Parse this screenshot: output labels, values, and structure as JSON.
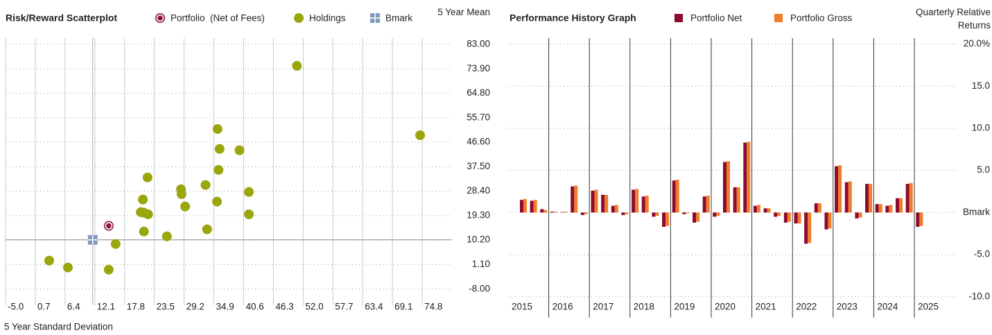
{
  "chart_data": [
    {
      "type": "scatter",
      "title": "Risk/Reward Scatterplot",
      "x_label": "5 Year Standard Deviation",
      "y_label": "5 Year Mean",
      "xlim": [
        -5.0,
        80.5
      ],
      "ylim": [
        -14.0,
        85.3
      ],
      "xticks": [
        {
          "value": -5.0,
          "label": "-5.0"
        },
        0.7,
        6.4,
        12.1,
        17.8,
        23.5,
        29.2,
        34.9,
        40.6,
        46.3,
        {
          "value": 52.0,
          "label": "52.0"
        },
        57.7,
        63.4,
        69.1,
        74.8
      ],
      "yticks": [
        {
          "value": 83,
          "label": "83.00"
        },
        {
          "value": 73.9,
          "label": "73.90"
        },
        {
          "value": 64.8,
          "label": "64.80"
        },
        {
          "value": 55.7,
          "label": "55.70"
        },
        {
          "value": 46.6,
          "label": "46.60"
        },
        {
          "value": 37.5,
          "label": "37.50"
        },
        {
          "value": 28.4,
          "label": "28.40"
        },
        {
          "value": 19.3,
          "label": "19.30"
        },
        {
          "value": 10.2,
          "label": "10.20"
        },
        {
          "value": 1.1,
          "label": "1.10"
        },
        {
          "value": -8,
          "label": "-8.00"
        }
      ],
      "grid": true,
      "series": [
        {
          "name": "Portfolio  (Net of Fees)",
          "color": "#8b1538",
          "marker": "ring",
          "x": [
            14.76
          ],
          "y": [
            15.5
          ]
        },
        {
          "name": "Holdings",
          "color": "#9aa60c",
          "marker": "circle",
          "x": [
            3.36,
            6.94,
            14.76,
            16.09,
            21.5,
            25.9,
            20.9,
            21.5,
            22.3,
            21.3,
            22.2,
            28.6,
            28.7,
            29.4,
            33.3,
            33.6,
            35.5,
            35.6,
            36.0,
            35.8,
            39.8,
            41.6,
            41.6,
            50.8,
            74.4
          ],
          "y": [
            2.57,
            0.0,
            -0.8,
            8.75,
            13.4,
            11.6,
            20.6,
            20.4,
            19.8,
            25.3,
            33.5,
            29.1,
            27.3,
            22.7,
            30.7,
            14.2,
            24.5,
            51.5,
            44.1,
            36.3,
            43.6,
            28.1,
            19.8,
            75.0,
            49.2
          ]
        },
        {
          "name": "Bmark",
          "color": "#7f9bbd",
          "marker": "square",
          "x": [
            11.7
          ],
          "y": [
            10.3
          ]
        }
      ]
    },
    {
      "type": "bar",
      "title": "Performance History Graph",
      "y_label": "Quarterly Relative Returns",
      "ylim": [
        -11.0,
        20.7
      ],
      "yticks": [
        {
          "value": 20,
          "label": "20.0%"
        },
        {
          "value": 15,
          "label": "15.0"
        },
        {
          "value": 10,
          "label": "10.0"
        },
        {
          "value": 5,
          "label": "5.0"
        },
        {
          "value": 0,
          "label": "Bmark"
        },
        {
          "value": -5,
          "label": "-5.0"
        },
        {
          "value": -10,
          "label": "-10.0"
        }
      ],
      "grid": true,
      "categories": [
        "2015",
        null,
        null,
        "2016",
        null,
        null,
        null,
        "2017",
        null,
        null,
        null,
        "2018",
        null,
        null,
        null,
        "2019",
        null,
        null,
        null,
        "2020",
        null,
        null,
        null,
        "2021",
        null,
        null,
        null,
        "2022",
        null,
        null,
        null,
        "2023",
        null,
        null,
        null,
        "2024",
        null,
        null,
        null,
        "2025"
      ],
      "series": [
        {
          "name": "Portfolio Net",
          "color": "#8c0a2e",
          "values": [
            1.5,
            1.4,
            0.4,
            0.1,
            0.05,
            3.1,
            -0.3,
            2.6,
            2.1,
            0.8,
            -0.3,
            2.7,
            1.9,
            -0.5,
            -1.7,
            3.8,
            -0.2,
            -1.2,
            1.9,
            -0.5,
            6.0,
            3.0,
            8.3,
            0.8,
            0.5,
            -0.5,
            -1.2,
            -1.3,
            -3.7,
            1.1,
            -2.0,
            5.5,
            3.6,
            -0.7,
            3.4,
            1.0,
            0.8,
            1.7,
            3.4,
            -1.7
          ]
        },
        {
          "name": "Portfolio Gross",
          "color": "#f07d2a",
          "values": [
            1.6,
            1.5,
            0.3,
            0.1,
            0.1,
            3.2,
            -0.2,
            2.7,
            2.1,
            0.9,
            -0.2,
            2.8,
            2.0,
            -0.4,
            -1.6,
            3.9,
            -0.1,
            -1.1,
            2.0,
            -0.4,
            6.1,
            3.0,
            8.4,
            0.9,
            0.5,
            -0.4,
            -1.1,
            -1.3,
            -3.6,
            1.1,
            -1.9,
            5.6,
            3.7,
            -0.6,
            3.4,
            1.0,
            0.9,
            1.7,
            3.5,
            -1.6
          ]
        }
      ]
    }
  ]
}
